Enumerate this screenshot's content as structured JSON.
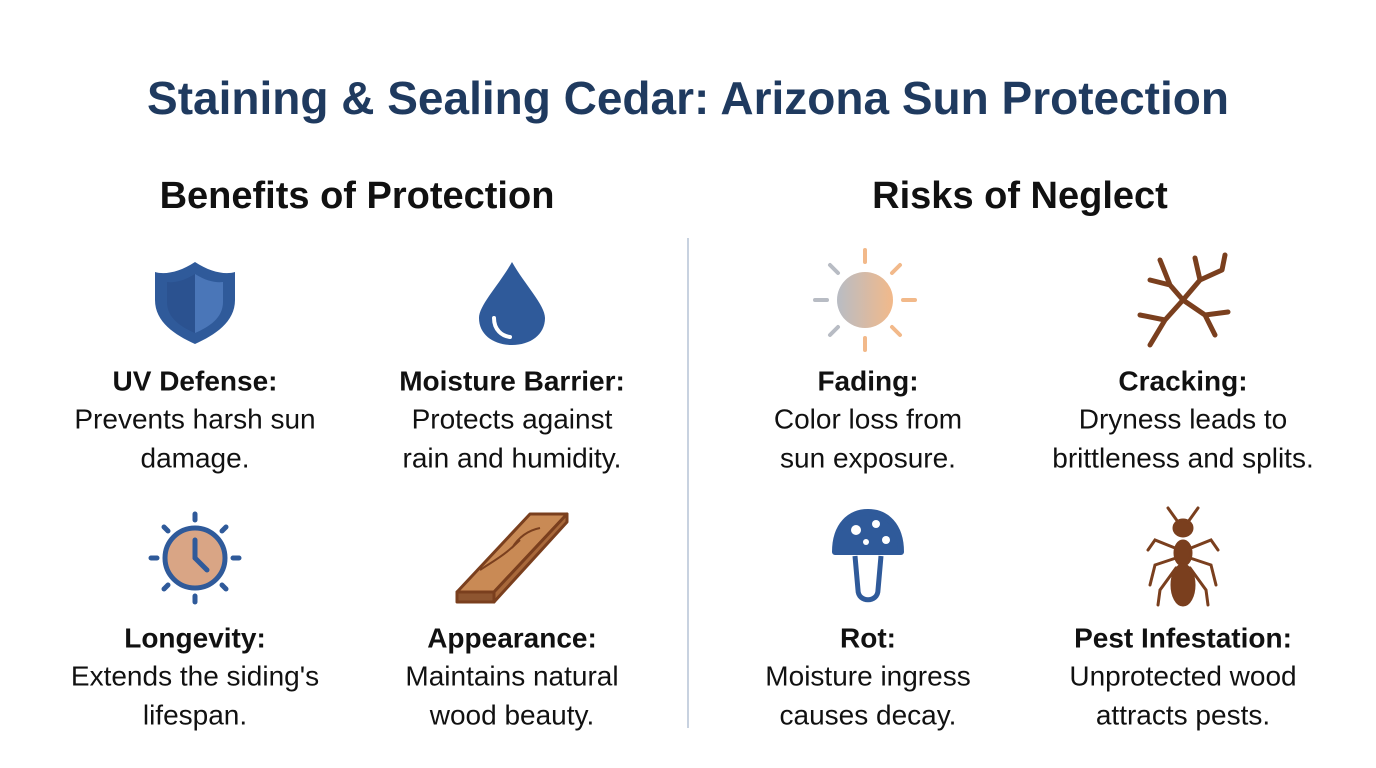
{
  "title": "Staining & Sealing Cedar: Arizona Sun Protection",
  "sections": [
    {
      "heading": "Benefits of Protection",
      "items": [
        {
          "label": "UV Defense:",
          "lines": [
            "Prevents harsh sun",
            "damage."
          ]
        },
        {
          "label": "Moisture Barrier:",
          "lines": [
            "Protects against",
            "rain and humidity."
          ]
        },
        {
          "label": "Longevity:",
          "lines": [
            "Extends the siding's",
            "lifespan."
          ]
        },
        {
          "label": "Appearance:",
          "lines": [
            "Maintains natural",
            "wood beauty."
          ]
        }
      ]
    },
    {
      "heading": "Risks of Neglect",
      "items": [
        {
          "label": "Fading:",
          "lines": [
            "Color loss from",
            "sun exposure."
          ]
        },
        {
          "label": "Cracking:",
          "lines": [
            "Dryness leads to",
            "brittleness and splits."
          ]
        },
        {
          "label": "Rot:",
          "lines": [
            "Moisture ingress",
            "causes decay."
          ]
        },
        {
          "label": "Pest Infestation:",
          "lines": [
            "Unprotected wood",
            "attracts pests."
          ]
        }
      ]
    }
  ]
}
